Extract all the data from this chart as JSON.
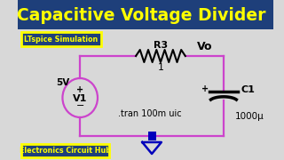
{
  "title": "Capacitive Voltage Divider",
  "title_color": "#FFFF00",
  "title_bg": "#1e3f7a",
  "subtitle": "LTspice Simulation",
  "subtitle_color": "#FFFF00",
  "subtitle_bg": "#1e3f7a",
  "footer": "Electronics Circuit Hub",
  "footer_color": "#FFFF00",
  "footer_bg": "#1e3f7a",
  "bg_color": "#d8d8d8",
  "wire_color": "#cc44cc",
  "ground_color": "#0000bb",
  "v1_label": "V1",
  "v1_voltage": "5V",
  "r3_label": "R3",
  "r3_value": "1",
  "c1_label": "C1",
  "c1_value": "1000μ",
  "vo_label": "Vo",
  "tran_cmd": ".tran 100m uic"
}
